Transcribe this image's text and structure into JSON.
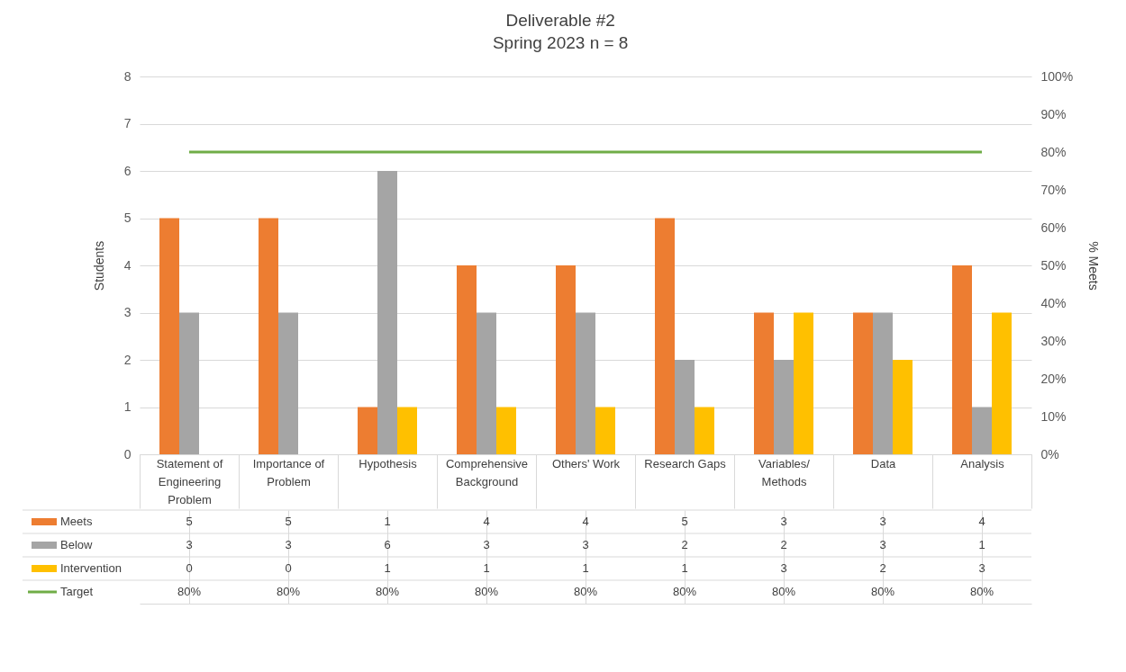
{
  "chart_data": {
    "type": "bar",
    "title": "Deliverable #2",
    "subtitle": "Spring 2023                n = 8",
    "ylabel": "Students",
    "y2label": "% Meets",
    "categories": [
      "Statement of Engineering Problem",
      "Importance of Problem",
      "Hypothesis",
      "Comprehensive Background",
      "Others' Work",
      "Research Gaps",
      "Variables/Methods",
      "Data",
      "Analysis"
    ],
    "series": [
      {
        "name": "Meets",
        "color": "#ed7d31",
        "values": [
          5,
          5,
          1,
          4,
          4,
          5,
          3,
          3,
          4
        ]
      },
      {
        "name": "Below",
        "color": "#a5a5a5",
        "values": [
          3,
          3,
          6,
          3,
          3,
          2,
          2,
          3,
          1
        ]
      },
      {
        "name": "Intervention",
        "color": "#ffc000",
        "values": [
          0,
          0,
          1,
          1,
          1,
          1,
          3,
          2,
          3
        ]
      },
      {
        "name": "Target",
        "type": "line",
        "axis": "y2",
        "color": "#70ad47",
        "values": [
          80,
          80,
          80,
          80,
          80,
          80,
          80,
          80,
          80
        ],
        "value_labels": [
          "80%",
          "80%",
          "80%",
          "80%",
          "80%",
          "80%",
          "80%",
          "80%",
          "80%"
        ]
      }
    ],
    "ylim": [
      0,
      8
    ],
    "yticks": [
      0,
      1,
      2,
      3,
      4,
      5,
      6,
      7,
      8
    ],
    "y2lim": [
      0,
      100
    ],
    "y2ticks": [
      {
        "value": 0,
        "label": "0%"
      },
      {
        "value": 10,
        "label": "10%"
      },
      {
        "value": 20,
        "label": "20%"
      },
      {
        "value": 30,
        "label": "30%"
      },
      {
        "value": 40,
        "label": "40%"
      },
      {
        "value": 50,
        "label": "50%"
      },
      {
        "value": 60,
        "label": "60%"
      },
      {
        "value": 70,
        "label": "70%"
      },
      {
        "value": 80,
        "label": "80%"
      },
      {
        "value": 90,
        "label": "90%"
      },
      {
        "value": 100,
        "label": "100%"
      }
    ],
    "grid": "y",
    "legend": "bottom",
    "data_labels": true
  }
}
